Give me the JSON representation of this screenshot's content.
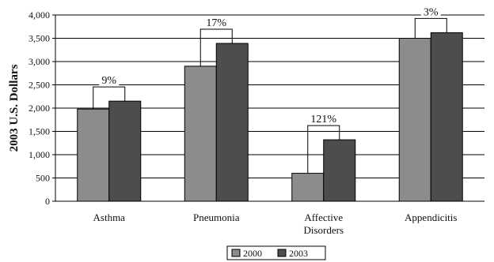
{
  "chart_data": {
    "type": "bar",
    "categories": [
      "Asthma",
      "Pneumonia",
      "Affective\nDisorders",
      "Appendicitis"
    ],
    "series": [
      {
        "name": "2000",
        "values": [
          1980,
          2900,
          600,
          3500
        ],
        "color": "#8c8c8c"
      },
      {
        "name": "2003",
        "values": [
          2150,
          3390,
          1320,
          3620
        ],
        "color": "#4d4d4d"
      }
    ],
    "annotations": [
      "9%",
      "17%",
      "121%",
      "3%"
    ],
    "ylabel": "2003 U.S. Dollars",
    "ylim": [
      0,
      4000
    ],
    "yticks": [
      0,
      500,
      1000,
      1500,
      2000,
      2500,
      3000,
      3500,
      4000
    ],
    "ytick_labels": [
      "0",
      "500",
      "1,000",
      "1,500",
      "2,000",
      "2,500",
      "3,000",
      "3,500",
      "4,000"
    ],
    "grid": true,
    "legend_position": "bottom-center"
  }
}
